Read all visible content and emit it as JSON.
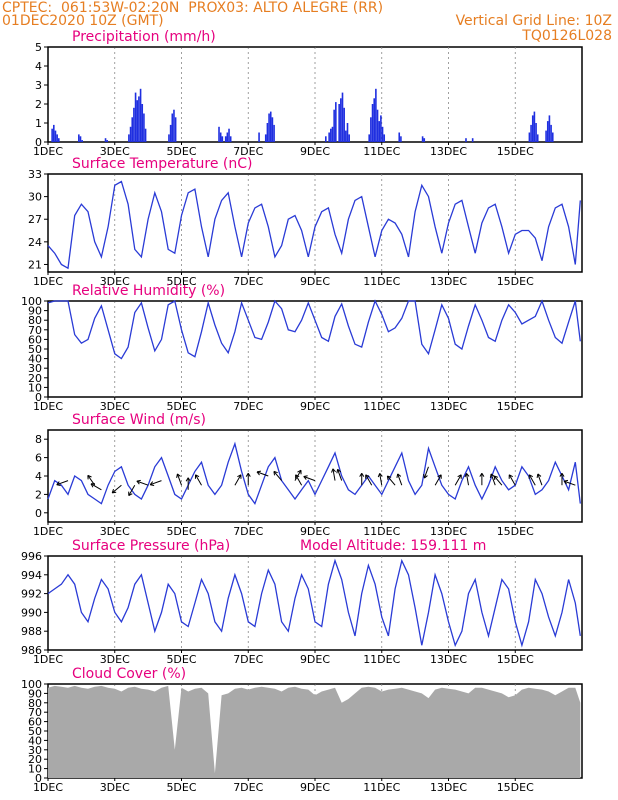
{
  "header": {
    "line1_left": "CPTEC:  061:53W-02:20N  PROX03: ALTO ALEGRE (RR)",
    "line2_left": "01DEC2020 10Z (GMT)",
    "line2_right": "Vertical Grid Line: 10Z",
    "line3_right": "TQ0126L028",
    "color": "#e67e22"
  },
  "colors": {
    "title": "#e6007e",
    "line": "#2a3bd6",
    "bars": "#1f2fe0",
    "cloud": "#a9a9a9",
    "grid": "#888888"
  },
  "x_ticks": [
    "1DEC",
    "3DEC",
    "5DEC",
    "7DEC",
    "9DEC",
    "11DEC",
    "13DEC",
    "15DEC"
  ],
  "chart_data": [
    {
      "id": "precip",
      "type": "bar",
      "title": "Precipitation (mm/h)",
      "ylim": [
        0,
        5
      ],
      "yticks": [
        0,
        1,
        2,
        3,
        4,
        5
      ],
      "x_days": [
        0.1,
        0.15,
        0.2,
        0.25,
        0.3,
        0.9,
        0.95,
        1.0,
        1.7,
        1.75,
        2.4,
        2.45,
        2.5,
        2.55,
        2.6,
        2.65,
        2.7,
        2.75,
        2.8,
        2.85,
        2.9,
        3.6,
        3.65,
        3.7,
        3.75,
        3.8,
        5.1,
        5.15,
        5.2,
        5.3,
        5.35,
        5.4,
        5.45,
        6.3,
        6.5,
        6.55,
        6.6,
        6.65,
        6.7,
        6.75,
        8.3,
        8.4,
        8.45,
        8.5,
        8.55,
        8.6,
        8.7,
        8.75,
        8.8,
        8.85,
        8.9,
        8.95,
        9.0,
        9.6,
        9.65,
        9.7,
        9.75,
        9.8,
        9.85,
        9.9,
        9.95,
        10.0,
        10.05,
        10.5,
        10.55,
        11.2,
        11.25,
        12.5,
        12.7,
        14.4,
        14.45,
        14.5,
        14.55,
        14.6,
        14.65,
        14.9,
        14.95,
        15.0,
        15.05,
        15.1
      ],
      "values": [
        0.7,
        0.9,
        0.6,
        0.4,
        0.2,
        0.4,
        0.3,
        0.1,
        0.2,
        0.1,
        0.4,
        0.8,
        1.3,
        1.8,
        2.6,
        2.2,
        2.4,
        2.8,
        2.0,
        1.5,
        0.7,
        0.4,
        0.9,
        1.5,
        1.7,
        1.3,
        0.8,
        0.5,
        0.3,
        0.3,
        0.5,
        0.7,
        0.3,
        0.5,
        0.4,
        1.0,
        1.5,
        1.6,
        1.3,
        0.9,
        0.3,
        0.5,
        0.7,
        0.8,
        1.7,
        2.1,
        2.0,
        2.3,
        2.6,
        1.8,
        0.6,
        1.0,
        0.4,
        0.4,
        1.3,
        2.0,
        2.3,
        2.8,
        1.7,
        1.1,
        1.4,
        0.8,
        0.4,
        0.5,
        0.3,
        0.3,
        0.2,
        0.2,
        0.2,
        0.5,
        0.9,
        1.4,
        1.6,
        1.0,
        0.4,
        0.6,
        1.1,
        1.4,
        0.9,
        0.5
      ]
    },
    {
      "id": "temp",
      "type": "line",
      "title": "Surface Temperature (nC)",
      "ylim": [
        20,
        33
      ],
      "yticks": [
        21,
        24,
        27,
        30,
        33
      ],
      "x_days": [
        0.0,
        0.2,
        0.4,
        0.6,
        0.8,
        1.0,
        1.2,
        1.4,
        1.6,
        1.8,
        2.0,
        2.2,
        2.4,
        2.6,
        2.8,
        3.0,
        3.2,
        3.4,
        3.6,
        3.8,
        4.0,
        4.2,
        4.4,
        4.6,
        4.8,
        5.0,
        5.2,
        5.4,
        5.6,
        5.8,
        6.0,
        6.2,
        6.4,
        6.6,
        6.8,
        7.0,
        7.2,
        7.4,
        7.6,
        7.8,
        8.0,
        8.2,
        8.4,
        8.6,
        8.8,
        9.0,
        9.2,
        9.4,
        9.6,
        9.8,
        10.0,
        10.2,
        10.4,
        10.6,
        10.8,
        11.0,
        11.2,
        11.4,
        11.6,
        11.8,
        12.0,
        12.2,
        12.4,
        12.6,
        12.8,
        13.0,
        13.2,
        13.4,
        13.6,
        13.8,
        14.0,
        14.2,
        14.4,
        14.6,
        14.8,
        15.0,
        15.2,
        15.4,
        15.6,
        15.8,
        15.95
      ],
      "values": [
        23.5,
        22.5,
        21.0,
        20.5,
        27.5,
        29.0,
        28.0,
        24.0,
        22.0,
        26.0,
        31.5,
        32.0,
        29.0,
        23.0,
        22.0,
        27.0,
        30.5,
        28.0,
        23.0,
        22.5,
        27.5,
        30.5,
        31.0,
        26.0,
        22.0,
        27.0,
        29.5,
        30.5,
        26.0,
        22.0,
        26.5,
        28.5,
        29.0,
        26.0,
        22.0,
        23.5,
        27.0,
        27.5,
        25.5,
        22.0,
        26.0,
        28.0,
        28.5,
        25.0,
        22.5,
        27.0,
        29.5,
        30.0,
        26.0,
        22.0,
        25.5,
        27.0,
        26.5,
        25.0,
        22.0,
        28.0,
        31.5,
        30.0,
        26.0,
        22.5,
        26.5,
        29.0,
        29.5,
        26.0,
        22.5,
        26.5,
        28.5,
        29.0,
        26.0,
        22.5,
        25.0,
        25.5,
        25.5,
        24.5,
        21.5,
        26.0,
        28.5,
        29.0,
        26.0,
        21.0,
        29.5
      ]
    },
    {
      "id": "rh",
      "type": "line",
      "title": "Relative Humidity (%)",
      "ylim": [
        0,
        100
      ],
      "yticks": [
        0,
        10,
        20,
        30,
        40,
        50,
        60,
        70,
        80,
        90,
        100
      ],
      "x_days": [
        0.0,
        0.2,
        0.4,
        0.6,
        0.8,
        1.0,
        1.2,
        1.4,
        1.6,
        1.8,
        2.0,
        2.2,
        2.4,
        2.6,
        2.8,
        3.0,
        3.2,
        3.4,
        3.6,
        3.8,
        4.0,
        4.2,
        4.4,
        4.6,
        4.8,
        5.0,
        5.2,
        5.4,
        5.6,
        5.8,
        6.0,
        6.2,
        6.4,
        6.6,
        6.8,
        7.0,
        7.2,
        7.4,
        7.6,
        7.8,
        8.0,
        8.2,
        8.4,
        8.6,
        8.8,
        9.0,
        9.2,
        9.4,
        9.6,
        9.8,
        10.0,
        10.2,
        10.4,
        10.6,
        10.8,
        11.0,
        11.2,
        11.4,
        11.6,
        11.8,
        12.0,
        12.2,
        12.4,
        12.6,
        12.8,
        13.0,
        13.2,
        13.4,
        13.6,
        13.8,
        14.0,
        14.2,
        14.4,
        14.6,
        14.8,
        15.0,
        15.2,
        15.4,
        15.6,
        15.8,
        15.95
      ],
      "values": [
        98,
        100,
        100,
        100,
        65,
        56,
        60,
        82,
        95,
        70,
        45,
        40,
        52,
        88,
        98,
        72,
        48,
        60,
        96,
        100,
        70,
        46,
        42,
        68,
        98,
        75,
        56,
        46,
        68,
        98,
        80,
        62,
        60,
        78,
        100,
        92,
        70,
        68,
        80,
        98,
        80,
        62,
        58,
        84,
        97,
        74,
        55,
        52,
        78,
        100,
        86,
        68,
        72,
        82,
        100,
        100,
        55,
        45,
        70,
        96,
        82,
        55,
        50,
        74,
        96,
        80,
        62,
        58,
        80,
        96,
        88,
        76,
        80,
        84,
        100,
        80,
        62,
        56,
        78,
        100,
        58
      ]
    },
    {
      "id": "wind",
      "type": "line",
      "title": "Surface Wind (m/s)",
      "ylim": [
        -1,
        9
      ],
      "yticks": [
        0,
        2,
        4,
        6,
        8
      ],
      "x_days": [
        0.0,
        0.2,
        0.4,
        0.6,
        0.8,
        1.0,
        1.2,
        1.4,
        1.6,
        1.8,
        2.0,
        2.2,
        2.4,
        2.6,
        2.8,
        3.0,
        3.2,
        3.4,
        3.6,
        3.8,
        4.0,
        4.2,
        4.4,
        4.6,
        4.8,
        5.0,
        5.2,
        5.4,
        5.6,
        5.8,
        6.0,
        6.2,
        6.4,
        6.6,
        6.8,
        7.0,
        7.2,
        7.4,
        7.6,
        7.8,
        8.0,
        8.2,
        8.4,
        8.6,
        8.8,
        9.0,
        9.2,
        9.4,
        9.6,
        9.8,
        10.0,
        10.2,
        10.4,
        10.6,
        10.8,
        11.0,
        11.2,
        11.4,
        11.6,
        11.8,
        12.0,
        12.2,
        12.4,
        12.6,
        12.8,
        13.0,
        13.2,
        13.4,
        13.6,
        13.8,
        14.0,
        14.2,
        14.4,
        14.6,
        14.8,
        15.0,
        15.2,
        15.4,
        15.6,
        15.8,
        15.95
      ],
      "values": [
        1.5,
        3.5,
        3.0,
        2.0,
        4.0,
        3.5,
        2.0,
        1.5,
        1.0,
        3.0,
        4.5,
        5.0,
        3.0,
        2.0,
        1.5,
        3.0,
        5.0,
        6.0,
        4.0,
        2.0,
        1.5,
        3.0,
        4.5,
        5.5,
        3.0,
        2.0,
        3.0,
        5.5,
        7.5,
        4.5,
        2.0,
        1.0,
        3.0,
        5.0,
        6.0,
        3.5,
        2.5,
        1.5,
        2.5,
        3.5,
        2.0,
        3.5,
        5.0,
        6.5,
        4.0,
        2.5,
        2.0,
        3.0,
        4.0,
        3.0,
        2.0,
        3.5,
        5.0,
        6.5,
        3.5,
        2.0,
        3.0,
        7.0,
        5.0,
        3.0,
        2.0,
        1.5,
        3.5,
        5.0,
        3.0,
        1.5,
        3.0,
        5.0,
        3.5,
        2.5,
        3.0,
        5.0,
        4.0,
        2.0,
        2.5,
        3.5,
        5.5,
        4.0,
        2.5,
        5.5,
        1.0
      ],
      "arrows": [
        {
          "day": 0.6,
          "speed": 3.5,
          "dir_deg": 160
        },
        {
          "day": 1.4,
          "speed": 3.0,
          "dir_deg": 235
        },
        {
          "day": 1.6,
          "speed": 2.5,
          "dir_deg": 210
        },
        {
          "day": 2.2,
          "speed": 3.0,
          "dir_deg": 140
        },
        {
          "day": 2.6,
          "speed": 3.0,
          "dir_deg": 120
        },
        {
          "day": 3.0,
          "speed": 3.0,
          "dir_deg": 200
        },
        {
          "day": 3.4,
          "speed": 3.5,
          "dir_deg": 160
        },
        {
          "day": 4.0,
          "speed": 3.0,
          "dir_deg": 250
        },
        {
          "day": 4.2,
          "speed": 2.5,
          "dir_deg": 270
        },
        {
          "day": 4.6,
          "speed": 3.0,
          "dir_deg": 240
        },
        {
          "day": 5.6,
          "speed": 3.0,
          "dir_deg": 300
        },
        {
          "day": 6.0,
          "speed": 3.0,
          "dir_deg": 270
        },
        {
          "day": 6.6,
          "speed": 4.0,
          "dir_deg": 200
        },
        {
          "day": 7.0,
          "speed": 3.5,
          "dir_deg": 230
        },
        {
          "day": 7.4,
          "speed": 3.5,
          "dir_deg": 300
        },
        {
          "day": 7.6,
          "speed": 3.0,
          "dir_deg": 240
        },
        {
          "day": 8.0,
          "speed": 3.5,
          "dir_deg": 200
        },
        {
          "day": 8.6,
          "speed": 3.5,
          "dir_deg": 260
        },
        {
          "day": 8.8,
          "speed": 3.5,
          "dir_deg": 250
        },
        {
          "day": 9.4,
          "speed": 3.0,
          "dir_deg": 270
        },
        {
          "day": 9.7,
          "speed": 3.0,
          "dir_deg": 240
        },
        {
          "day": 10.0,
          "speed": 3.0,
          "dir_deg": 260
        },
        {
          "day": 10.4,
          "speed": 3.0,
          "dir_deg": 230
        },
        {
          "day": 10.6,
          "speed": 3.0,
          "dir_deg": 250
        },
        {
          "day": 11.4,
          "speed": 5.0,
          "dir_deg": 110
        },
        {
          "day": 11.6,
          "speed": 3.0,
          "dir_deg": 300
        },
        {
          "day": 12.2,
          "speed": 3.0,
          "dir_deg": 300
        },
        {
          "day": 12.6,
          "speed": 3.0,
          "dir_deg": 260
        },
        {
          "day": 13.0,
          "speed": 3.0,
          "dir_deg": 270
        },
        {
          "day": 13.4,
          "speed": 3.0,
          "dir_deg": 250
        },
        {
          "day": 13.6,
          "speed": 3.0,
          "dir_deg": 230
        },
        {
          "day": 14.0,
          "speed": 3.0,
          "dir_deg": 240
        },
        {
          "day": 14.6,
          "speed": 3.0,
          "dir_deg": 240
        },
        {
          "day": 14.8,
          "speed": 3.0,
          "dir_deg": 250
        },
        {
          "day": 15.4,
          "speed": 3.0,
          "dir_deg": 270
        },
        {
          "day": 15.8,
          "speed": 3.0,
          "dir_deg": 200
        }
      ]
    },
    {
      "id": "pressure",
      "type": "line",
      "title": "Surface Pressure (hPa)",
      "subtitle": "Model Altitude: 159.111 m",
      "ylim": [
        986,
        996
      ],
      "yticks": [
        986,
        988,
        990,
        992,
        994,
        996
      ],
      "x_days": [
        0.0,
        0.2,
        0.4,
        0.6,
        0.8,
        1.0,
        1.2,
        1.4,
        1.6,
        1.8,
        2.0,
        2.2,
        2.4,
        2.6,
        2.8,
        3.0,
        3.2,
        3.4,
        3.6,
        3.8,
        4.0,
        4.2,
        4.4,
        4.6,
        4.8,
        5.0,
        5.2,
        5.4,
        5.6,
        5.8,
        6.0,
        6.2,
        6.4,
        6.6,
        6.8,
        7.0,
        7.2,
        7.4,
        7.6,
        7.8,
        8.0,
        8.2,
        8.4,
        8.6,
        8.8,
        9.0,
        9.2,
        9.4,
        9.6,
        9.8,
        10.0,
        10.2,
        10.4,
        10.6,
        10.8,
        11.0,
        11.2,
        11.4,
        11.6,
        11.8,
        12.0,
        12.2,
        12.4,
        12.6,
        12.8,
        13.0,
        13.2,
        13.4,
        13.6,
        13.8,
        14.0,
        14.2,
        14.4,
        14.6,
        14.8,
        15.0,
        15.2,
        15.4,
        15.6,
        15.8,
        15.95
      ],
      "values": [
        992.0,
        992.5,
        993.0,
        994.0,
        993.0,
        990.0,
        989.0,
        991.5,
        993.5,
        992.5,
        990.0,
        989.0,
        990.5,
        993.0,
        994.0,
        991.0,
        988.0,
        990.0,
        993.0,
        992.0,
        989.0,
        988.5,
        991.0,
        993.5,
        992.0,
        989.0,
        988.0,
        991.5,
        994.0,
        992.0,
        989.0,
        988.5,
        992.0,
        994.5,
        993.0,
        989.0,
        988.0,
        991.5,
        994.0,
        992.5,
        989.0,
        988.5,
        993.0,
        995.5,
        993.5,
        990.0,
        987.5,
        992.0,
        995.0,
        993.0,
        989.5,
        987.5,
        992.5,
        995.5,
        994.0,
        990.5,
        986.5,
        990.0,
        994.0,
        992.0,
        989.0,
        986.5,
        988.0,
        992.0,
        993.5,
        990.0,
        987.5,
        990.5,
        993.5,
        992.5,
        989.0,
        986.5,
        989.0,
        993.5,
        992.0,
        989.5,
        987.5,
        990.0,
        993.5,
        991.0,
        987.5
      ]
    },
    {
      "id": "cloud",
      "type": "area",
      "title": "Cloud Cover (%)",
      "ylim": [
        0,
        100
      ],
      "yticks": [
        0,
        10,
        20,
        30,
        40,
        50,
        60,
        70,
        80,
        90,
        100
      ],
      "x_days": [
        0.0,
        0.2,
        0.4,
        0.6,
        0.8,
        1.0,
        1.2,
        1.4,
        1.6,
        1.8,
        2.0,
        2.2,
        2.4,
        2.6,
        2.8,
        3.0,
        3.2,
        3.4,
        3.6,
        3.8,
        4.0,
        4.2,
        4.4,
        4.6,
        4.8,
        5.0,
        5.2,
        5.4,
        5.6,
        5.8,
        6.0,
        6.2,
        6.4,
        6.6,
        6.8,
        7.0,
        7.2,
        7.4,
        7.6,
        7.8,
        8.0,
        8.2,
        8.4,
        8.6,
        8.8,
        9.0,
        9.2,
        9.4,
        9.6,
        9.8,
        10.0,
        10.2,
        10.4,
        10.6,
        10.8,
        11.0,
        11.2,
        11.4,
        11.6,
        11.8,
        12.0,
        12.2,
        12.4,
        12.6,
        12.8,
        13.0,
        13.2,
        13.4,
        13.6,
        13.8,
        14.0,
        14.2,
        14.4,
        14.6,
        14.8,
        15.0,
        15.2,
        15.4,
        15.6,
        15.8,
        15.95
      ],
      "values": [
        96,
        98,
        97,
        96,
        98,
        96,
        95,
        97,
        98,
        96,
        95,
        92,
        96,
        97,
        95,
        94,
        92,
        96,
        98,
        30,
        96,
        92,
        95,
        96,
        90,
        5,
        88,
        90,
        95,
        96,
        94,
        96,
        97,
        96,
        95,
        92,
        96,
        97,
        95,
        94,
        88,
        92,
        94,
        96,
        80,
        84,
        90,
        96,
        97,
        96,
        92,
        94,
        95,
        96,
        94,
        92,
        90,
        85,
        94,
        96,
        95,
        94,
        92,
        90,
        96,
        96,
        94,
        92,
        90,
        86,
        88,
        94,
        96,
        95,
        94,
        92,
        88,
        92,
        96,
        96,
        80
      ]
    }
  ]
}
